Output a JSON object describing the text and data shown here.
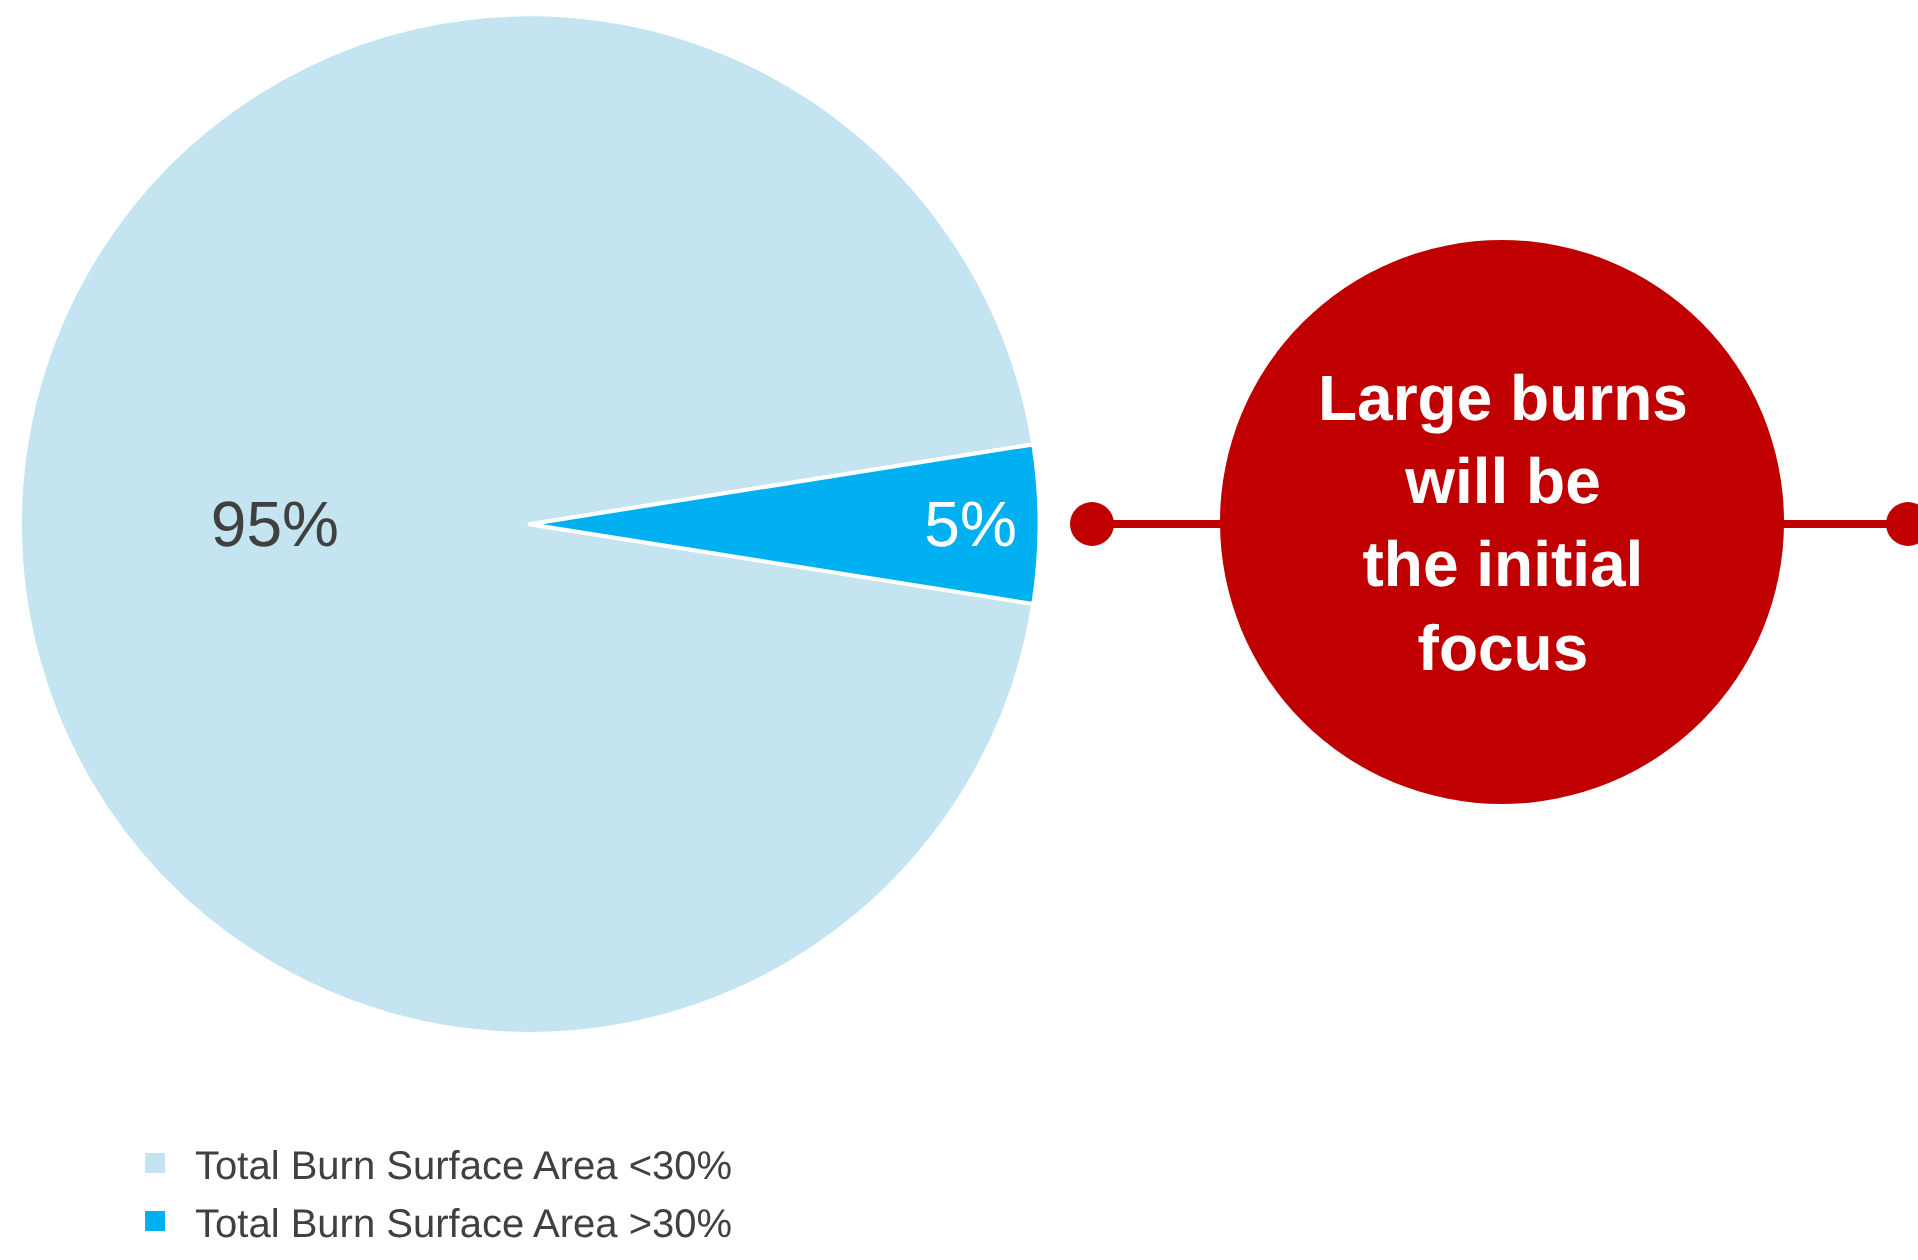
{
  "chart_data": {
    "type": "pie",
    "categories": [
      "Total Burn Surface Area <30%",
      "Total Burn Surface Area >30%"
    ],
    "values": [
      95,
      5
    ],
    "value_labels": [
      "95%",
      "5%"
    ],
    "colors": [
      "#c3e4f0",
      "#00b0f0"
    ],
    "legend": "bottom left",
    "annotations": [
      "Large burns\nwill be\nthe initial\nfocus"
    ]
  }
}
